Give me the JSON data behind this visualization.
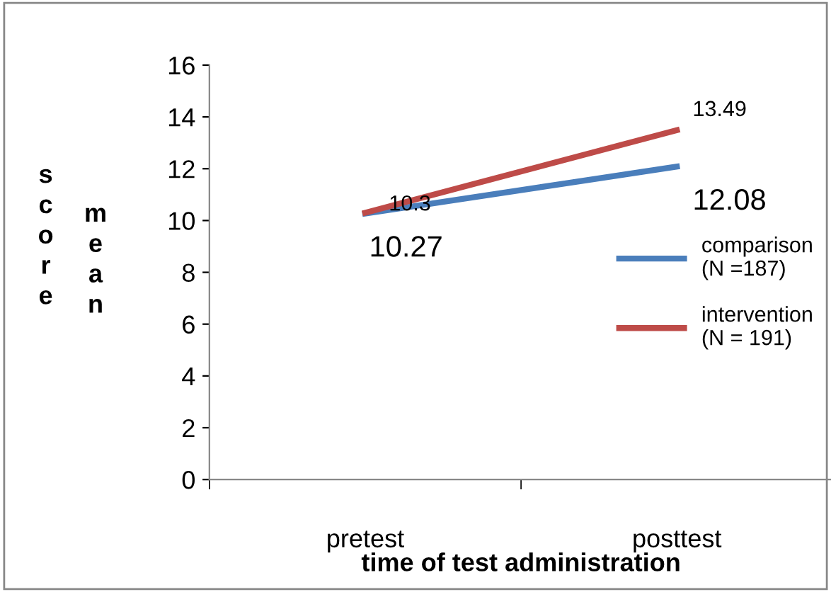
{
  "chart_data": {
    "type": "line",
    "xlabel": "time of test administration",
    "ylabel": "score mean",
    "categories": [
      "pretest",
      "posttest"
    ],
    "series": [
      {
        "name": "comparison\n(N =187)",
        "color": "#4a7ebb",
        "values": [
          10.27,
          12.08
        ],
        "value_labels": [
          "10.27",
          "12.08"
        ]
      },
      {
        "name": "intervention\n(N = 191)",
        "color": "#be4b48",
        "values": [
          10.3,
          13.49
        ],
        "value_labels": [
          "10.3",
          "13.49"
        ]
      }
    ],
    "ylim": [
      0,
      16
    ],
    "yticks": [
      0,
      2,
      4,
      6,
      8,
      10,
      12,
      14,
      16
    ],
    "grid": false,
    "legend": "right",
    "marker": "none"
  }
}
